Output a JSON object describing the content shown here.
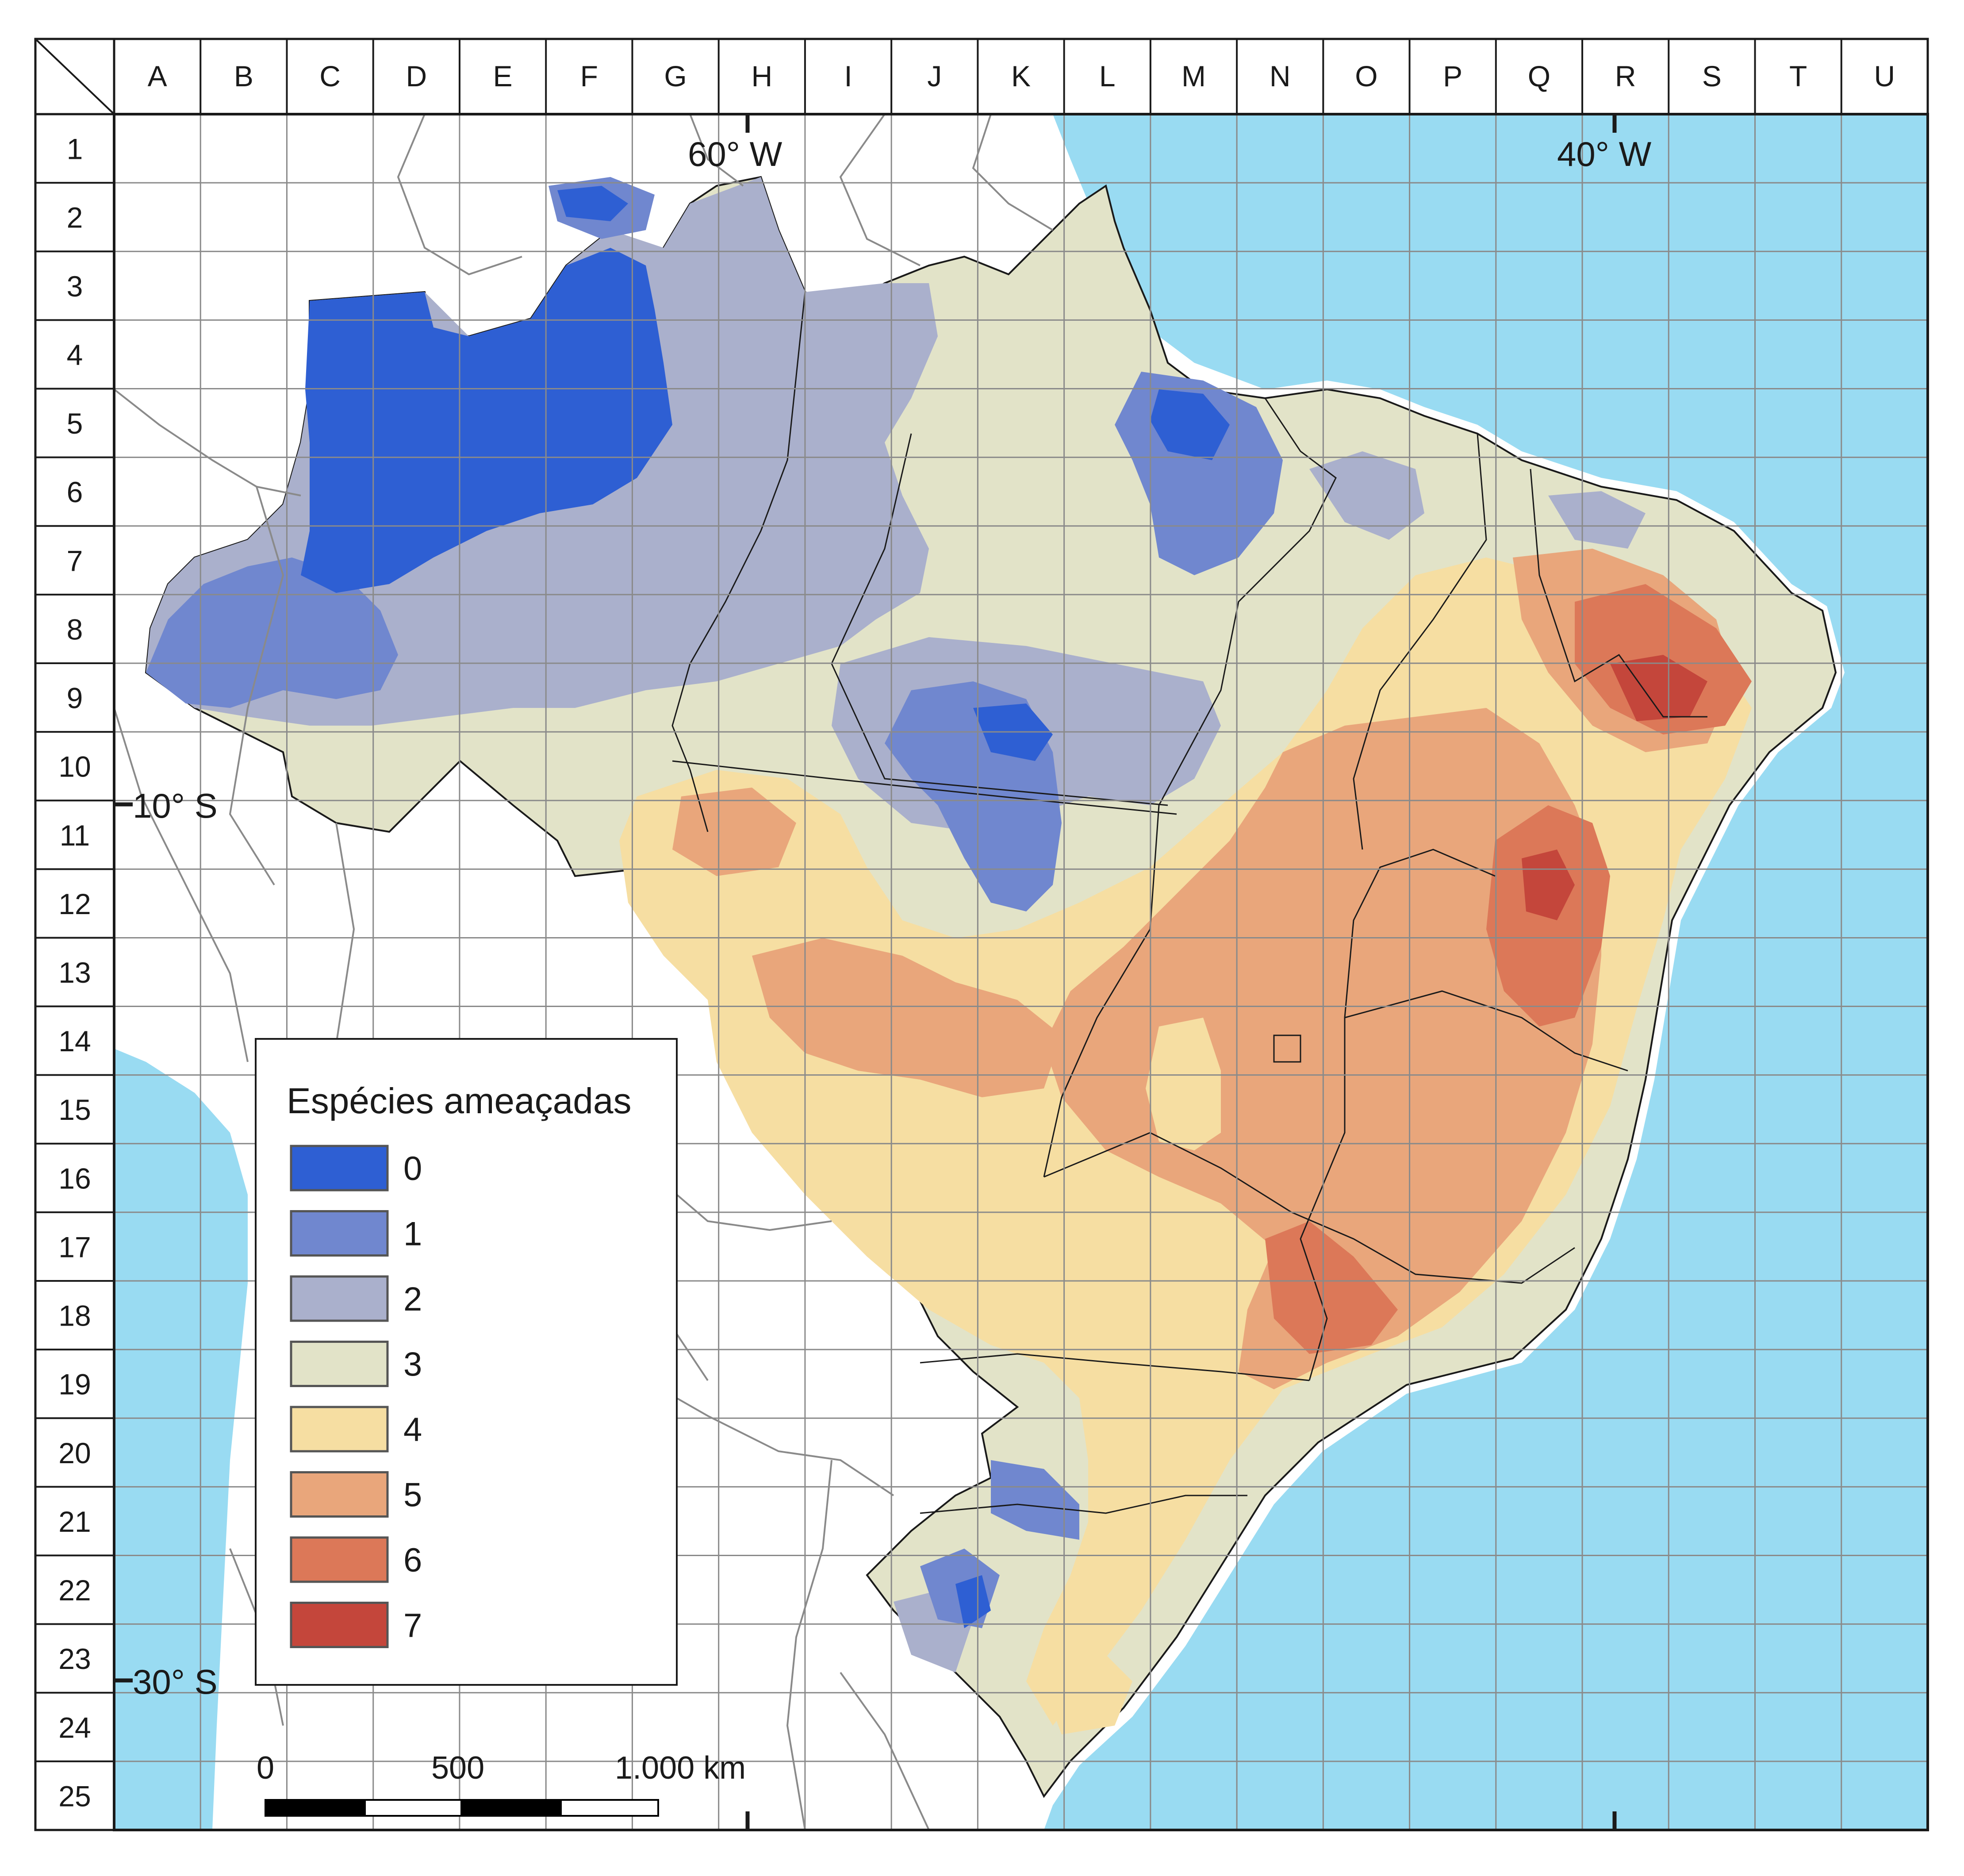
{
  "grid": {
    "columns": [
      "A",
      "B",
      "C",
      "D",
      "E",
      "F",
      "G",
      "H",
      "I",
      "J",
      "K",
      "L",
      "M",
      "N",
      "O",
      "P",
      "Q",
      "R",
      "S",
      "T",
      "U"
    ],
    "rows": [
      "1",
      "2",
      "3",
      "4",
      "5",
      "6",
      "7",
      "8",
      "9",
      "10",
      "11",
      "12",
      "13",
      "14",
      "15",
      "16",
      "17",
      "18",
      "19",
      "20",
      "21",
      "22",
      "23",
      "24",
      "25"
    ]
  },
  "coordinates": {
    "lon_60": "60° W",
    "lon_40": "40° W",
    "lat_10": "10° S",
    "lat_30": "30° S"
  },
  "legend": {
    "title": "Espécies ameaçadas",
    "items": [
      {
        "label": "0",
        "color": "#2e5fd3"
      },
      {
        "label": "1",
        "color": "#7087cf"
      },
      {
        "label": "2",
        "color": "#aab0cc"
      },
      {
        "label": "3",
        "color": "#e2e3c8"
      },
      {
        "label": "4",
        "color": "#f6dea2"
      },
      {
        "label": "5",
        "color": "#e9a67b"
      },
      {
        "label": "6",
        "color": "#dc7858"
      },
      {
        "label": "7",
        "color": "#c4463b"
      }
    ]
  },
  "scale_bar": {
    "labels": [
      "0",
      "500",
      "1.000 km"
    ]
  },
  "colors": {
    "ocean": "#99dbf2",
    "land_outside": "#ffffff",
    "grid_line": "#8a8a8a",
    "border": "#1a1a1a"
  }
}
